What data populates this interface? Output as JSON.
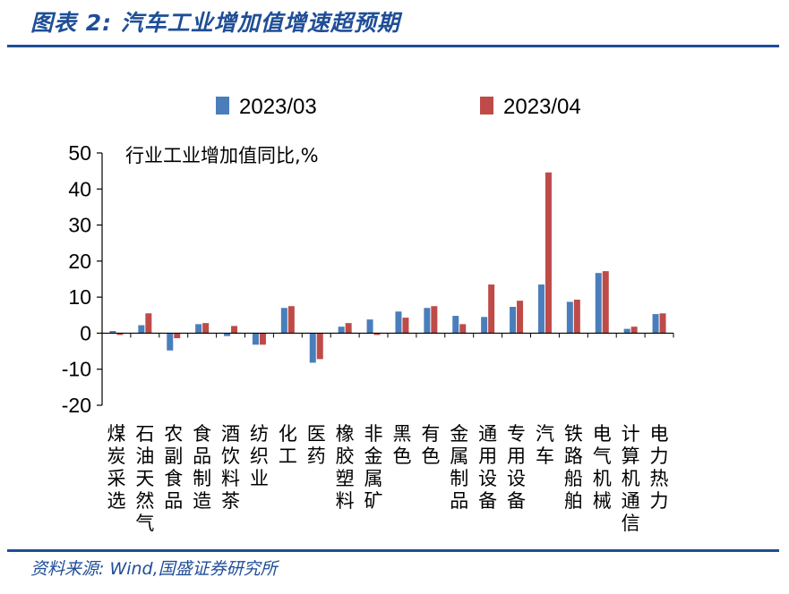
{
  "header": {
    "title": "图表 2:  汽车工业增加值增速超预期"
  },
  "footer": {
    "source": "资料来源:  Wind,国盛证券研究所"
  },
  "colors": {
    "brand": "#1f4e96",
    "series_2023_03": "#4a7ebb",
    "series_2023_04": "#be4b48"
  },
  "chart_data": {
    "type": "bar",
    "title": "",
    "unit_label": "行业工业增加值同比,%",
    "xlabel": "",
    "ylabel": "",
    "ylim": [
      -20,
      50
    ],
    "yticks": [
      50,
      40,
      30,
      20,
      10,
      0,
      -10,
      -20
    ],
    "legend_position": "top",
    "categories": [
      "煤炭采选",
      "石油天然气",
      "农副食品",
      "食品制造",
      "酒饮料茶",
      "纺织业",
      "化工",
      "医药",
      "橡胶塑料",
      "非金属矿",
      "黑色",
      "有色",
      "金属制品",
      "通用设备",
      "专用设备",
      "汽车",
      "铁路船舶",
      "电气机械",
      "计算机通信",
      "电力热力"
    ],
    "series": [
      {
        "name": "2023/03",
        "color": "#4a7ebb",
        "values": [
          0.6,
          2.2,
          -4.8,
          2.5,
          -0.8,
          -3.2,
          7.0,
          -8.2,
          1.8,
          3.8,
          6.0,
          7.0,
          4.8,
          4.5,
          7.3,
          13.5,
          8.7,
          16.7,
          1.2,
          5.3
        ]
      },
      {
        "name": "2023/04",
        "color": "#be4b48",
        "values": [
          -0.5,
          5.5,
          -1.4,
          2.8,
          2.0,
          -3.2,
          7.5,
          -7.2,
          2.8,
          -0.5,
          4.3,
          7.5,
          2.5,
          13.5,
          9.0,
          44.6,
          9.3,
          17.2,
          1.8,
          5.5
        ]
      }
    ]
  }
}
